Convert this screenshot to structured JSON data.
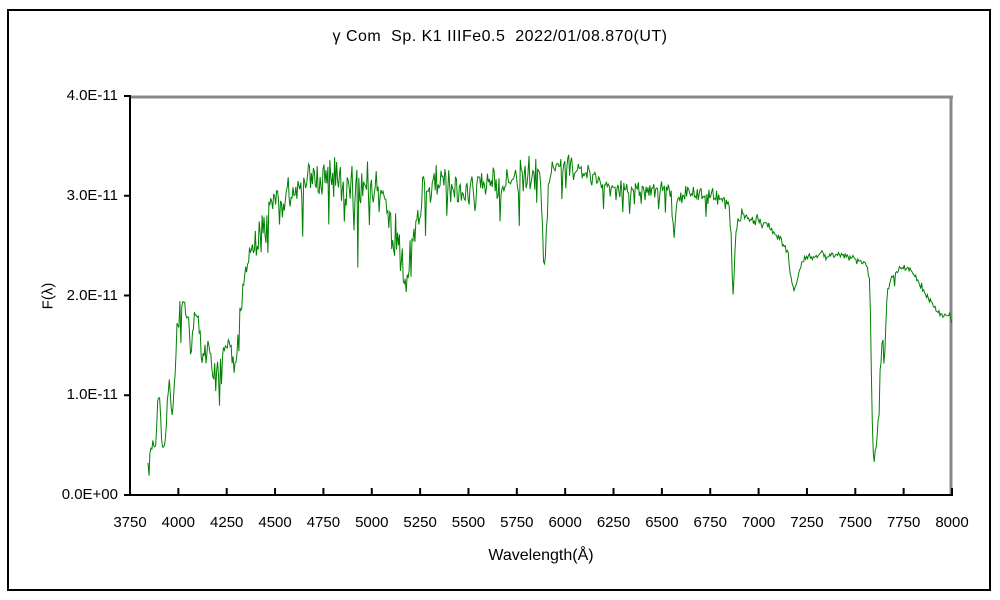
{
  "title": "γ Com  Sp. K1 IIIFe0.5  2022/01/08.870(UT)",
  "axes": {
    "x_label": "Wavelength(Å)",
    "y_label": "F(λ)",
    "x_ticks": [
      "3750",
      "4000",
      "4250",
      "4500",
      "4750",
      "5000",
      "5250",
      "5500",
      "5750",
      "6000",
      "6250",
      "6500",
      "6750",
      "7000",
      "7250",
      "7500",
      "7750",
      "8000"
    ],
    "y_ticks": [
      {
        "v": 4,
        "label": "4.0E-11"
      },
      {
        "v": 3,
        "label": "3.0E-11"
      },
      {
        "v": 2,
        "label": "2.0E-11"
      },
      {
        "v": 1,
        "label": "1.0E-11"
      },
      {
        "v": 0,
        "label": "0.0E+00"
      }
    ]
  },
  "chart_data": {
    "type": "line",
    "title": "γ Com  Sp. K1 IIIFe0.5  2022/01/08.870(UT)",
    "xlabel": "Wavelength(Å)",
    "ylabel": "F(λ)",
    "x_axis_range": [
      3750,
      8000
    ],
    "y_axis_range_flux": [
      0,
      4e-11
    ],
    "flux_scale": "values below are in units of 1e-11",
    "line_color": "#008000",
    "grid": false,
    "legend": "none",
    "x_data_range": [
      3843,
      8000
    ],
    "sample_step_angstrom": 5,
    "noise_seed": 12,
    "noise_regions": [
      [
        3980,
        0.09
      ],
      [
        4300,
        0.17
      ],
      [
        4500,
        0.22
      ],
      [
        5280,
        0.27
      ],
      [
        5900,
        0.22
      ],
      [
        6350,
        0.14
      ],
      [
        6860,
        0.1
      ],
      [
        7160,
        0.07
      ],
      [
        7570,
        0.04
      ],
      [
        7672,
        0.1
      ],
      [
        8000,
        0.045
      ]
    ],
    "envelope_points": [
      [
        3843,
        0.38
      ],
      [
        3850,
        0.3
      ],
      [
        3856,
        0.5
      ],
      [
        3862,
        0.42
      ],
      [
        3870,
        0.55
      ],
      [
        3878,
        0.5
      ],
      [
        3886,
        0.65
      ],
      [
        3895,
        1.0
      ],
      [
        3905,
        0.95
      ],
      [
        3914,
        0.6
      ],
      [
        3922,
        0.45
      ],
      [
        3930,
        0.5
      ],
      [
        3938,
        0.8
      ],
      [
        3948,
        1.1
      ],
      [
        3956,
        1.12
      ],
      [
        3963,
        0.85
      ],
      [
        3968,
        0.8
      ],
      [
        3976,
        1.05
      ],
      [
        3984,
        1.25
      ],
      [
        3992,
        1.55
      ],
      [
        4000,
        1.75
      ],
      [
        4010,
        1.9
      ],
      [
        4020,
        1.97
      ],
      [
        4032,
        1.92
      ],
      [
        4045,
        1.8
      ],
      [
        4058,
        1.62
      ],
      [
        4068,
        1.48
      ],
      [
        4078,
        1.72
      ],
      [
        4088,
        1.9
      ],
      [
        4098,
        1.8
      ],
      [
        4110,
        1.62
      ],
      [
        4122,
        1.42
      ],
      [
        4132,
        1.33
      ],
      [
        4142,
        1.45
      ],
      [
        4152,
        1.52
      ],
      [
        4162,
        1.44
      ],
      [
        4172,
        1.32
      ],
      [
        4182,
        1.26
      ],
      [
        4192,
        1.27
      ],
      [
        4205,
        1.26
      ],
      [
        4218,
        1.3
      ],
      [
        4230,
        1.38
      ],
      [
        4242,
        1.45
      ],
      [
        4254,
        1.52
      ],
      [
        4264,
        1.5
      ],
      [
        4274,
        1.33
      ],
      [
        4284,
        1.26
      ],
      [
        4294,
        1.3
      ],
      [
        4305,
        1.6
      ],
      [
        4320,
        1.9
      ],
      [
        4335,
        2.1
      ],
      [
        4350,
        2.25
      ],
      [
        4365,
        2.4
      ],
      [
        4380,
        2.48
      ],
      [
        4395,
        2.52
      ],
      [
        4410,
        2.55
      ],
      [
        4425,
        2.6
      ],
      [
        4440,
        2.65
      ],
      [
        4455,
        2.72
      ],
      [
        4470,
        2.85
      ],
      [
        4485,
        2.95
      ],
      [
        4500,
        3.0
      ],
      [
        4515,
        2.92
      ],
      [
        4530,
        2.86
      ],
      [
        4545,
        2.9
      ],
      [
        4560,
        2.94
      ],
      [
        4575,
        2.96
      ],
      [
        4590,
        3.0
      ],
      [
        4605,
        3.04
      ],
      [
        4620,
        3.06
      ],
      [
        4635,
        3.08
      ],
      [
        4650,
        3.08
      ],
      [
        4665,
        3.12
      ],
      [
        4680,
        3.15
      ],
      [
        4695,
        3.17
      ],
      [
        4710,
        3.18
      ],
      [
        4725,
        3.2
      ],
      [
        4740,
        3.22
      ],
      [
        4755,
        3.25
      ],
      [
        4770,
        3.27
      ],
      [
        4785,
        3.25
      ],
      [
        4800,
        3.22
      ],
      [
        4815,
        3.22
      ],
      [
        4830,
        3.24
      ],
      [
        4845,
        3.1
      ],
      [
        4861,
        2.88
      ],
      [
        4872,
        3.0
      ],
      [
        4885,
        3.08
      ],
      [
        4900,
        3.12
      ],
      [
        4915,
        3.14
      ],
      [
        4930,
        3.1
      ],
      [
        4945,
        3.1
      ],
      [
        4960,
        3.12
      ],
      [
        4975,
        3.14
      ],
      [
        4990,
        3.14
      ],
      [
        5005,
        3.12
      ],
      [
        5020,
        3.08
      ],
      [
        5035,
        3.04
      ],
      [
        5050,
        2.98
      ],
      [
        5065,
        2.92
      ],
      [
        5080,
        2.84
      ],
      [
        5095,
        2.76
      ],
      [
        5110,
        2.66
      ],
      [
        5125,
        2.58
      ],
      [
        5140,
        2.46
      ],
      [
        5155,
        2.32
      ],
      [
        5168,
        2.18
      ],
      [
        5180,
        2.12
      ],
      [
        5192,
        2.25
      ],
      [
        5205,
        2.45
      ],
      [
        5218,
        2.62
      ],
      [
        5232,
        2.78
      ],
      [
        5246,
        2.9
      ],
      [
        5260,
        2.98
      ],
      [
        5275,
        3.05
      ],
      [
        5290,
        3.1
      ],
      [
        5310,
        3.14
      ],
      [
        5330,
        3.18
      ],
      [
        5355,
        3.22
      ],
      [
        5380,
        3.14
      ],
      [
        5405,
        3.08
      ],
      [
        5430,
        3.05
      ],
      [
        5455,
        3.05
      ],
      [
        5480,
        3.06
      ],
      [
        5505,
        3.08
      ],
      [
        5530,
        3.08
      ],
      [
        5555,
        3.1
      ],
      [
        5580,
        3.1
      ],
      [
        5605,
        3.1
      ],
      [
        5630,
        3.11
      ],
      [
        5655,
        3.12
      ],
      [
        5680,
        3.14
      ],
      [
        5705,
        3.15
      ],
      [
        5730,
        3.17
      ],
      [
        5755,
        3.19
      ],
      [
        5780,
        3.21
      ],
      [
        5805,
        3.23
      ],
      [
        5830,
        3.24
      ],
      [
        5855,
        3.23
      ],
      [
        5875,
        3.18
      ],
      [
        5884,
        2.7
      ],
      [
        5891,
        2.28
      ],
      [
        5897,
        2.28
      ],
      [
        5905,
        2.75
      ],
      [
        5915,
        3.1
      ],
      [
        5930,
        3.24
      ],
      [
        5950,
        3.27
      ],
      [
        5970,
        3.29
      ],
      [
        5990,
        3.3
      ],
      [
        6010,
        3.31
      ],
      [
        6030,
        3.3
      ],
      [
        6050,
        3.28
      ],
      [
        6070,
        3.26
      ],
      [
        6090,
        3.25
      ],
      [
        6110,
        3.23
      ],
      [
        6130,
        3.21
      ],
      [
        6150,
        3.19
      ],
      [
        6170,
        3.16
      ],
      [
        6190,
        3.15
      ],
      [
        6210,
        3.13
      ],
      [
        6230,
        3.11
      ],
      [
        6250,
        3.1
      ],
      [
        6270,
        3.08
      ],
      [
        6290,
        3.06
      ],
      [
        6310,
        3.05
      ],
      [
        6335,
        3.05
      ],
      [
        6360,
        3.06
      ],
      [
        6385,
        3.07
      ],
      [
        6410,
        3.07
      ],
      [
        6435,
        3.05
      ],
      [
        6460,
        3.05
      ],
      [
        6485,
        3.07
      ],
      [
        6510,
        3.07
      ],
      [
        6535,
        3.04
      ],
      [
        6550,
        2.95
      ],
      [
        6558,
        2.75
      ],
      [
        6563,
        2.58
      ],
      [
        6570,
        2.8
      ],
      [
        6580,
        3.0
      ],
      [
        6600,
        3.04
      ],
      [
        6625,
        3.04
      ],
      [
        6650,
        3.04
      ],
      [
        6675,
        3.02
      ],
      [
        6700,
        3.01
      ],
      [
        6725,
        3.0
      ],
      [
        6750,
        3.0
      ],
      [
        6775,
        2.98
      ],
      [
        6800,
        2.97
      ],
      [
        6825,
        2.95
      ],
      [
        6845,
        2.92
      ],
      [
        6858,
        2.6
      ],
      [
        6866,
        2.0
      ],
      [
        6872,
        2.15
      ],
      [
        6880,
        2.55
      ],
      [
        6890,
        2.72
      ],
      [
        6905,
        2.8
      ],
      [
        6920,
        2.84
      ],
      [
        6935,
        2.82
      ],
      [
        6950,
        2.8
      ],
      [
        6970,
        2.78
      ],
      [
        6990,
        2.76
      ],
      [
        7010,
        2.74
      ],
      [
        7035,
        2.71
      ],
      [
        7060,
        2.67
      ],
      [
        7085,
        2.62
      ],
      [
        7110,
        2.57
      ],
      [
        7135,
        2.5
      ],
      [
        7155,
        2.38
      ],
      [
        7172,
        2.12
      ],
      [
        7186,
        2.02
      ],
      [
        7198,
        2.15
      ],
      [
        7212,
        2.26
      ],
      [
        7228,
        2.34
      ],
      [
        7245,
        2.39
      ],
      [
        7262,
        2.41
      ],
      [
        7280,
        2.39
      ],
      [
        7300,
        2.4
      ],
      [
        7325,
        2.42
      ],
      [
        7350,
        2.42
      ],
      [
        7375,
        2.41
      ],
      [
        7400,
        2.4
      ],
      [
        7425,
        2.4
      ],
      [
        7450,
        2.39
      ],
      [
        7475,
        2.38
      ],
      [
        7500,
        2.38
      ],
      [
        7525,
        2.35
      ],
      [
        7550,
        2.31
      ],
      [
        7565,
        2.28
      ],
      [
        7576,
        2.1
      ],
      [
        7584,
        1.1
      ],
      [
        7591,
        0.48
      ],
      [
        7598,
        0.42
      ],
      [
        7605,
        0.46
      ],
      [
        7612,
        0.6
      ],
      [
        7620,
        0.85
      ],
      [
        7628,
        1.2
      ],
      [
        7636,
        1.48
      ],
      [
        7644,
        1.52
      ],
      [
        7650,
        1.35
      ],
      [
        7657,
        1.65
      ],
      [
        7664,
        1.95
      ],
      [
        7672,
        2.08
      ],
      [
        7684,
        2.16
      ],
      [
        7698,
        2.21
      ],
      [
        7715,
        2.24
      ],
      [
        7732,
        2.27
      ],
      [
        7750,
        2.28
      ],
      [
        7768,
        2.27
      ],
      [
        7786,
        2.24
      ],
      [
        7804,
        2.21
      ],
      [
        7822,
        2.15
      ],
      [
        7840,
        2.1
      ],
      [
        7858,
        2.05
      ],
      [
        7876,
        2.0
      ],
      [
        7894,
        1.94
      ],
      [
        7912,
        1.88
      ],
      [
        7930,
        1.84
      ],
      [
        7948,
        1.81
      ],
      [
        7966,
        1.8
      ],
      [
        7984,
        1.82
      ],
      [
        8000,
        1.76
      ]
    ]
  },
  "colors": {
    "line": "#008000",
    "axis": "#000000",
    "frame_shadow": "#888888",
    "background": "#ffffff"
  }
}
